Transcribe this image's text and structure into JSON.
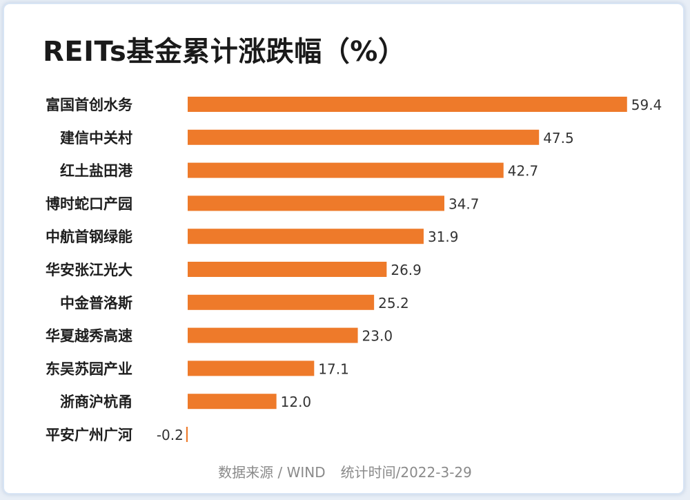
{
  "chart_data": {
    "type": "bar",
    "orientation": "horizontal",
    "title": "REITs基金累计涨跌幅（%）",
    "categories": [
      "富国首创水务",
      "建信中关村",
      "红土盐田港",
      "博时蛇口产园",
      "中航首钢绿能",
      "华安张江光大",
      "中金普洛斯",
      "华夏越秀高速",
      "东吴苏园产业",
      "浙商沪杭甬",
      "平安广州广河"
    ],
    "values": [
      59.4,
      47.5,
      42.7,
      34.7,
      31.9,
      26.9,
      25.2,
      23.0,
      17.1,
      12.0,
      -0.2
    ],
    "value_labels": [
      "59.4",
      "47.5",
      "42.7",
      "34.7",
      "31.9",
      "26.9",
      "25.2",
      "23.0",
      "17.1",
      "12.0",
      "-0.2"
    ],
    "bar_color": "#ee7a2a",
    "grid": false,
    "legend": "none"
  },
  "footer": {
    "source": "数据来源 / WIND",
    "date": "统计时间/2022-3-29"
  }
}
